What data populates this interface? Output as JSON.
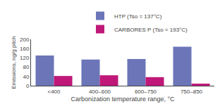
{
  "chart_data": {
    "type": "bar",
    "xlabel": "Carbonization temperature range, °C",
    "ylabel": "Emissions, ng/g pitch",
    "categories": [
      "<400",
      "400–600",
      "600–750",
      "750–850"
    ],
    "series": [
      {
        "name": "HTP (Tso = 137°C)",
        "color": "#6b75b8",
        "values": [
          130,
          113,
          115,
          168
        ]
      },
      {
        "name": "CARBORES P (Tso = 193°C)",
        "color": "#bf1878",
        "values": [
          42,
          45,
          37,
          9
        ]
      }
    ],
    "ylim": [
      0,
      200
    ],
    "yticks": [
      0,
      40,
      80,
      120,
      160,
      200
    ],
    "grid": false,
    "legend": "upper left"
  }
}
